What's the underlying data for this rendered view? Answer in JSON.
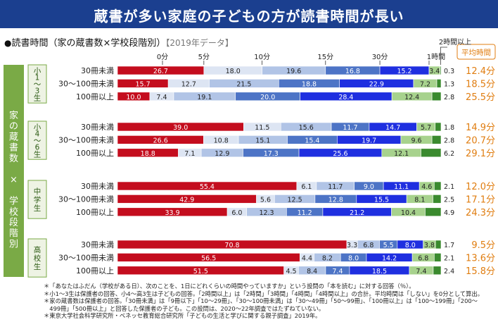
{
  "title": "蔵書が多い家庭の子どもの方が読書時間が長い",
  "subtitle": {
    "bullet": "●",
    "text": "読書時間（家の蔵書数×学校段階別）",
    "note": "【2019年データ】"
  },
  "colors": {
    "banner": "#1b3f8f",
    "avg_text": "#e07d10",
    "group_label_bg": "#7aaa46",
    "group_stage_bg": "#eef3e4",
    "segments": [
      "#c40d1e",
      "#dde5f3",
      "#b1c4e6",
      "#4d74c6",
      "#1f2fe0",
      "#a7d28d",
      "#3a8a2e"
    ]
  },
  "notes": [
    "＊「あなたはふだん（学校がある日）、次のことを、1日にどれくらいの時間やっていますか」という設問の「本を読む」に対する回答（％）。",
    "＊小1〜3生は保護者の回答、小4〜高3生は子どもの回答。「2時間以上」は「2時間」「3時間」「4時間」「4時間以上」の合計。平均時間は「しない」を0分として算出。",
    "＊家の蔵書数は保護者の回答。「30冊未満」は「9冊以下」「10〜29冊」、「30〜100冊未満」は「30〜49冊」「50〜99冊」、「100冊以上」は「100〜199冊」「200〜",
    "　499冊」「500冊以上」と回答した保護者の子ども。この設問は、2020〜22年調査ではたずねていない。",
    "＊東京大学社会科学研究所・ベネッセ教育総合研究所「子どもの生活と学びに関する親子調査」2019年。"
  ],
  "chart_data": {
    "type": "bar",
    "stacked": "horizontal-100%",
    "outer_axis_label": "家の蔵書数　×　学校段階別",
    "avg_header": "平均時間",
    "segment_labels": [
      "0分",
      "5分",
      "10分",
      "15分",
      "30分",
      "1時間",
      "2時間以上"
    ],
    "groups": [
      {
        "label": "小1〜3生",
        "rows": [
          {
            "label": "30冊未満",
            "values": [
              26.7,
              18.0,
              19.6,
              16.8,
              15.2,
              3.4,
              0.3
            ],
            "avg": "12.4分"
          },
          {
            "label": "30〜100冊未満",
            "values": [
              15.7,
              12.7,
              21.5,
              18.8,
              22.9,
              7.2,
              1.3
            ],
            "avg": "18.5分"
          },
          {
            "label": "100冊以上",
            "values": [
              10.0,
              7.4,
              19.1,
              20.0,
              28.4,
              12.4,
              2.8
            ],
            "avg": "25.5分"
          }
        ]
      },
      {
        "label": "小4〜6生",
        "rows": [
          {
            "label": "30冊未満",
            "values": [
              39.0,
              11.5,
              15.6,
              11.7,
              14.7,
              5.7,
              1.8
            ],
            "avg": "14.9分"
          },
          {
            "label": "30〜100冊未満",
            "values": [
              26.6,
              10.8,
              15.1,
              15.4,
              19.7,
              9.6,
              2.8
            ],
            "avg": "20.7分"
          },
          {
            "label": "100冊以上",
            "values": [
              18.8,
              7.1,
              12.9,
              17.3,
              25.6,
              12.1,
              6.2
            ],
            "avg": "29.1分"
          }
        ]
      },
      {
        "label": "中学生",
        "rows": [
          {
            "label": "30冊未満",
            "values": [
              55.4,
              6.1,
              11.7,
              9.0,
              11.1,
              4.6,
              2.1
            ],
            "avg": "12.0分"
          },
          {
            "label": "30〜100冊未満",
            "values": [
              42.9,
              5.6,
              12.5,
              12.8,
              15.5,
              8.1,
              2.5
            ],
            "avg": "17.1分"
          },
          {
            "label": "100冊以上",
            "values": [
              33.9,
              6.0,
              12.3,
              11.2,
              21.2,
              10.4,
              4.9
            ],
            "avg": "24.3分"
          }
        ]
      },
      {
        "label": "高校生",
        "rows": [
          {
            "label": "30冊未満",
            "values": [
              70.8,
              3.3,
              6.8,
              5.5,
              8.0,
              3.8,
              1.7
            ],
            "avg": "9.5分"
          },
          {
            "label": "30〜100冊未満",
            "values": [
              56.5,
              4.4,
              8.2,
              8.0,
              14.2,
              6.8,
              2.1
            ],
            "avg": "13.6分"
          },
          {
            "label": "100冊以上",
            "values": [
              51.5,
              4.5,
              8.4,
              7.4,
              18.5,
              7.4,
              2.4
            ],
            "avg": "15.8分"
          }
        ]
      }
    ]
  }
}
